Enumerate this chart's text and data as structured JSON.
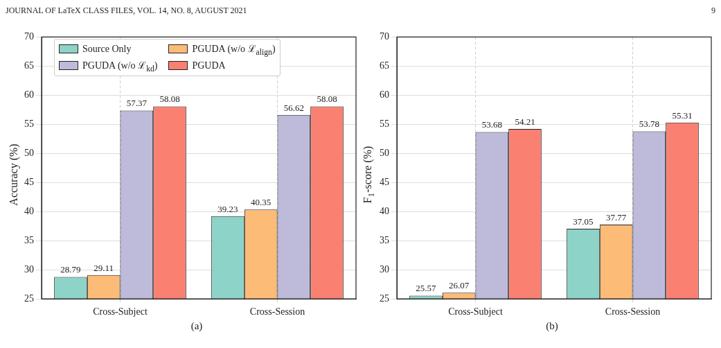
{
  "chart_data": [
    {
      "type": "bar",
      "ylabel": "Accuracy (%)",
      "categories": [
        "Cross-Subject",
        "Cross-Session"
      ],
      "series": [
        {
          "name": "Source Only",
          "color": "#8dd3c7",
          "values": [
            28.79,
            39.23
          ]
        },
        {
          "name": "PGUDA (w/o ℒ$_{align}$)",
          "color": "#fdbb78",
          "values": [
            29.11,
            40.35
          ]
        },
        {
          "name": "PGUDA (w/o ℒ$_{kd}$)",
          "color": "#bebada",
          "values": [
            57.37,
            56.62
          ]
        },
        {
          "name": "PGUDA",
          "color": "#fa8072",
          "values": [
            58.08,
            58.08
          ]
        }
      ],
      "ylim": [
        25,
        70
      ],
      "yticks": [
        25,
        30,
        35,
        40,
        45,
        50,
        55,
        60,
        65,
        70
      ],
      "grid": true,
      "legend": "top left",
      "data_labels": true,
      "annotations": [
        "JOURNAL OF LaTeX CLASS FILES, VOL. 14, NO. 8, AUGUST 2021",
        "9",
        "(a)"
      ]
    },
    {
      "type": "bar",
      "ylabel": "F$_{1}$-score (%)",
      "categories": [
        "Cross-Subject",
        "Cross-Session"
      ],
      "series": [
        {
          "color": "#8dd3c7",
          "values": [
            25.57,
            37.05
          ]
        },
        {
          "color": "#fdbb78",
          "values": [
            26.07,
            37.77
          ]
        },
        {
          "color": "#bebada",
          "values": [
            53.68,
            53.78
          ]
        },
        {
          "color": "#fa8072",
          "values": [
            54.21,
            55.31
          ]
        }
      ],
      "ylim": [
        25,
        70
      ],
      "yticks": [
        25,
        30,
        35,
        40,
        45,
        50,
        55,
        60,
        65,
        70
      ],
      "grid": true,
      "data_labels": true,
      "annotations": [
        "(b)"
      ]
    }
  ]
}
